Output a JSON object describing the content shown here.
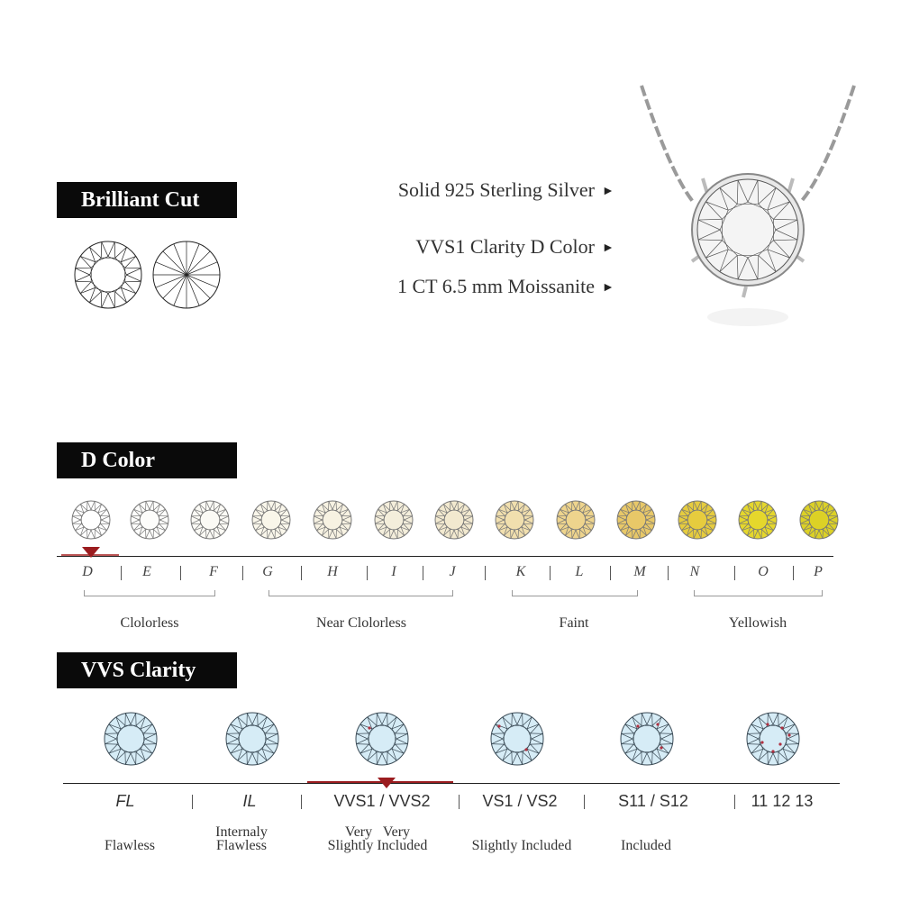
{
  "brilliant_cut": {
    "title": "Brilliant Cut"
  },
  "specs": [
    {
      "label": "Solid 925 Sterling Silver",
      "arrow": "►"
    },
    {
      "label": "VVS1 Clarity D Color",
      "arrow": "►"
    },
    {
      "label": "1 CT 6.5 mm Moissanite",
      "arrow": "►"
    }
  ],
  "color_section": {
    "title": "D  Color",
    "grades": [
      "D",
      "E",
      "F",
      "G",
      "H",
      "I",
      "J",
      "K",
      "L",
      "M",
      "N",
      "O",
      "P"
    ],
    "stone_colors": [
      "#ffffff",
      "#fdfdfb",
      "#fbfaf5",
      "#f9f6ea",
      "#f7f2e2",
      "#f4eedb",
      "#f2e9cf",
      "#f1dfae",
      "#eed48d",
      "#e8c868",
      "#e6cc3e",
      "#e5d72c",
      "#dcd126"
    ],
    "selected": "D",
    "groups": [
      "Clolorless",
      "Near Clolorless",
      "Faint",
      "Yellowish"
    ],
    "accent": "#9b1c1f"
  },
  "clarity_section": {
    "title": "VVS  Clarity",
    "grades": [
      "FL",
      "IL",
      "VVS1 / VVS2",
      "VS1  / VS2",
      "S11  / S12",
      "11 12 13"
    ],
    "descriptions": [
      "Flawless",
      "Internaly\nFlawless",
      "Very   Very\nSlightly Included",
      "Slightly Included",
      "Included"
    ],
    "selected": "VVS1 / VVS2",
    "stone_color": "#d6ecf6"
  }
}
